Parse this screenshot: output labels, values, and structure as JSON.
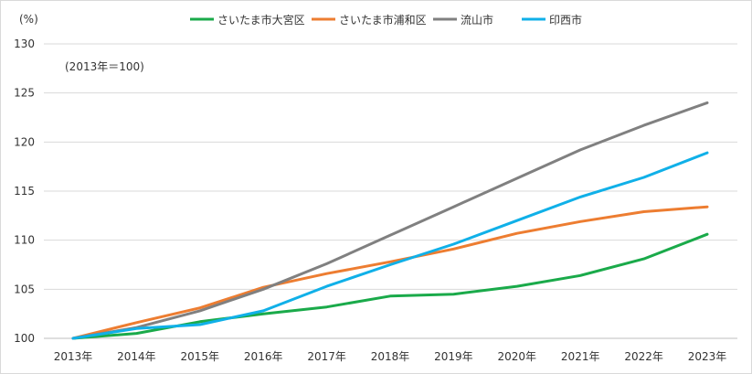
{
  "chart_data": {
    "type": "line",
    "y_unit": "(%)",
    "note": "(2013年＝100)",
    "categories": [
      "2013年",
      "2014年",
      "2015年",
      "2016年",
      "2017年",
      "2018年",
      "2019年",
      "2020年",
      "2021年",
      "2022年",
      "2023年"
    ],
    "ylim": [
      100,
      130
    ],
    "yticks": [
      "100",
      "105",
      "110",
      "115",
      "120",
      "125",
      "130"
    ],
    "grid": true,
    "legend_position": "top",
    "series": [
      {
        "name": "さいたま市大宮区",
        "color": "#1aaa4a",
        "values": [
          100,
          100.5,
          101.7,
          102.5,
          103.2,
          104.3,
          104.5,
          105.3,
          106.4,
          108.1,
          110.6
        ]
      },
      {
        "name": "さいたま市浦和区",
        "color": "#ed7d31",
        "values": [
          100,
          101.6,
          103.1,
          105.2,
          106.6,
          107.8,
          109.1,
          110.7,
          111.9,
          112.9,
          113.4
        ]
      },
      {
        "name": "流山市",
        "color": "#808080",
        "values": [
          100,
          101.1,
          102.8,
          105.0,
          107.6,
          110.5,
          113.4,
          116.3,
          119.2,
          121.7,
          124.0
        ]
      },
      {
        "name": "印西市",
        "color": "#10b0e8",
        "values": [
          100,
          101.0,
          101.4,
          102.8,
          105.3,
          107.5,
          109.6,
          112.0,
          114.4,
          116.4,
          118.9
        ]
      }
    ]
  }
}
